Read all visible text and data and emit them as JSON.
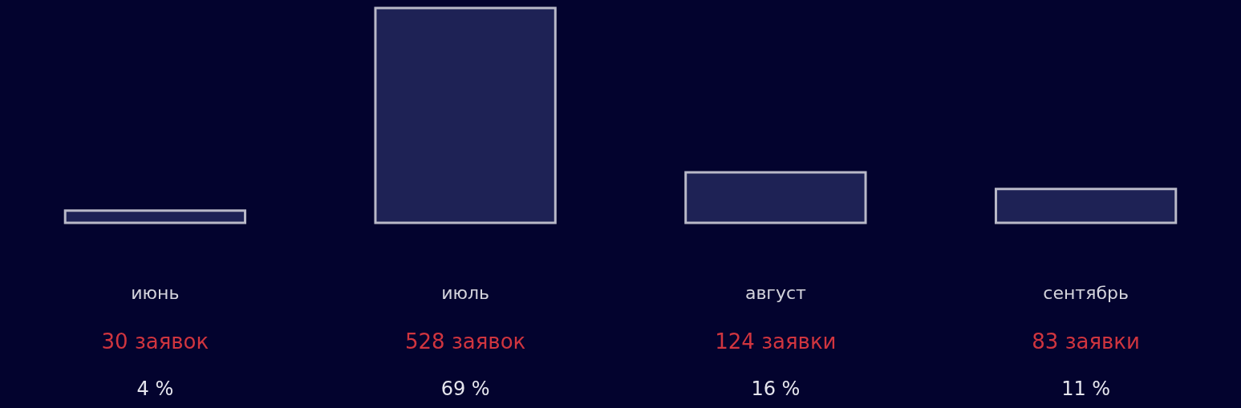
{
  "chart_data": {
    "type": "bar",
    "categories": [
      "июнь",
      "июль",
      "август",
      "сентябрь"
    ],
    "values": [
      30,
      528,
      124,
      83
    ],
    "color": "#1e2255",
    "value_labels": [
      "30 заявок",
      "528 заявок",
      "124 заявки",
      "83 заявки"
    ],
    "annotations": [
      "4 %",
      "69 %",
      "16 %",
      "11 %"
    ]
  }
}
